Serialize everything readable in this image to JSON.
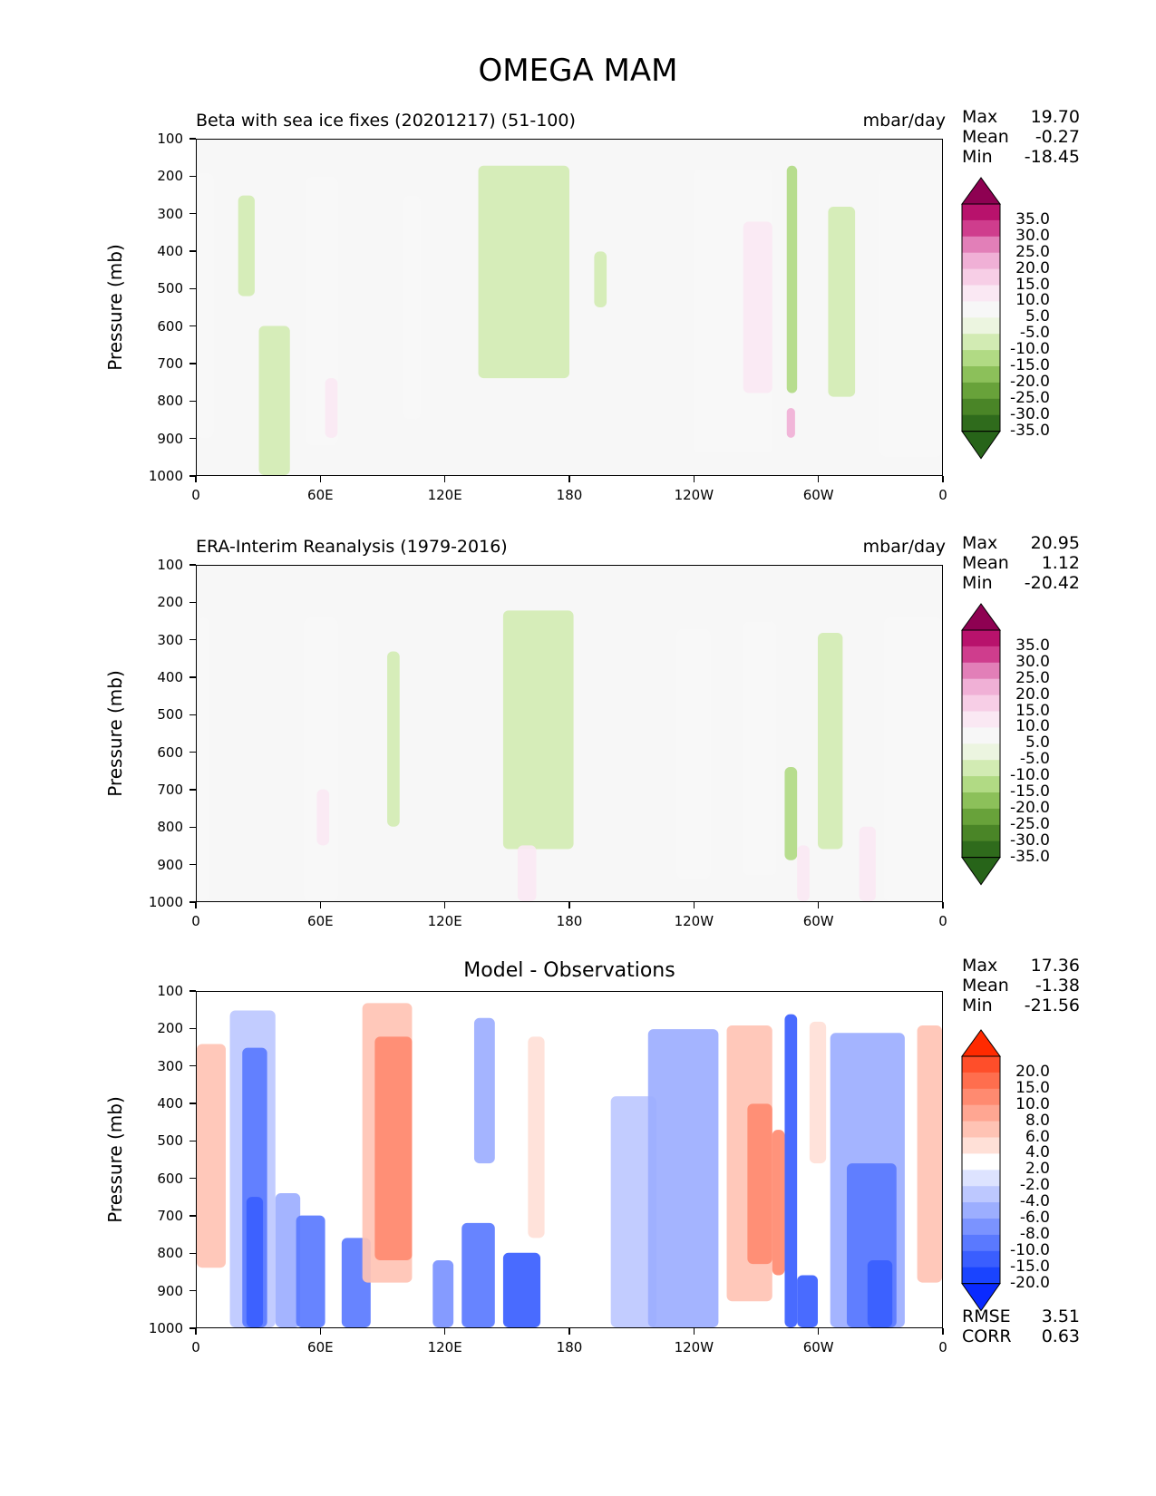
{
  "figure_title": "OMEGA MAM",
  "ylabel": "Pressure (mb)",
  "yticks": [
    "100",
    "200",
    "300",
    "400",
    "500",
    "600",
    "700",
    "800",
    "900",
    "1000"
  ],
  "xticks": [
    "0",
    "60E",
    "120E",
    "180",
    "120W",
    "60W",
    "0"
  ],
  "colors": {
    "background_field": "#f7f7f7",
    "diff_background": "#ffffff"
  },
  "panels": [
    {
      "title_left": "Beta with sea ice fixes (20201217) (51-100)",
      "title_right": "mbar/day",
      "stats": [
        {
          "label": "Max",
          "value": "19.70"
        },
        {
          "label": "Mean",
          "value": "-0.27"
        },
        {
          "label": "Min",
          "value": "-18.45"
        }
      ],
      "colorbar": {
        "labels": [
          "35.0",
          "30.0",
          "25.0",
          "20.0",
          "15.0",
          "10.0",
          "5.0",
          "-5.0",
          "-10.0",
          "-15.0",
          "-20.0",
          "-25.0",
          "-30.0",
          "-35.0"
        ],
        "colors": [
          "#8e0152",
          "#b8126c",
          "#cf3d8d",
          "#e27fb8",
          "#f0b0d6",
          "#f7cee6",
          "#fae8f3",
          "#f7f7f7",
          "#ecf5e0",
          "#d2ebb3",
          "#b1da84",
          "#8cc05a",
          "#68a23a",
          "#4a8527",
          "#2f6b1c",
          "#276419"
        ]
      }
    },
    {
      "title_left": "ERA-Interim Reanalysis (1979-2016)",
      "title_right": "mbar/day",
      "stats": [
        {
          "label": "Max",
          "value": "20.95"
        },
        {
          "label": "Mean",
          "value": "1.12"
        },
        {
          "label": "Min",
          "value": "-20.42"
        }
      ],
      "colorbar": {
        "labels": [
          "35.0",
          "30.0",
          "25.0",
          "20.0",
          "15.0",
          "10.0",
          "5.0",
          "-5.0",
          "-10.0",
          "-15.0",
          "-20.0",
          "-25.0",
          "-30.0",
          "-35.0"
        ],
        "colors": [
          "#8e0152",
          "#b8126c",
          "#cf3d8d",
          "#e27fb8",
          "#f0b0d6",
          "#f7cee6",
          "#fae8f3",
          "#f7f7f7",
          "#ecf5e0",
          "#d2ebb3",
          "#b1da84",
          "#8cc05a",
          "#68a23a",
          "#4a8527",
          "#2f6b1c",
          "#276419"
        ]
      }
    },
    {
      "title_center": "Model - Observations",
      "stats": [
        {
          "label": "Max",
          "value": "17.36"
        },
        {
          "label": "Mean",
          "value": "-1.38"
        },
        {
          "label": "Min",
          "value": "-21.56"
        }
      ],
      "colorbar": {
        "labels": [
          "20.0",
          "15.0",
          "10.0",
          "8.0",
          "6.0",
          "4.0",
          "2.0",
          "-2.0",
          "-4.0",
          "-6.0",
          "-8.0",
          "-10.0",
          "-15.0",
          "-20.0"
        ],
        "colors": [
          "#ff2a00",
          "#ff4e2a",
          "#ff6e4e",
          "#ff8a70",
          "#ffa692",
          "#ffc3b4",
          "#ffe0d7",
          "#ffffff",
          "#dde3ff",
          "#bdc8ff",
          "#9caeff",
          "#7b93ff",
          "#5a79ff",
          "#3a5eff",
          "#1a44ff",
          "#0a2aff"
        ]
      },
      "metrics": [
        {
          "label": "RMSE",
          "value": "3.51"
        },
        {
          "label": "CORR",
          "value": "0.63"
        }
      ]
    }
  ],
  "chart_data": [
    {
      "type": "heatmap",
      "title": "Beta with sea ice fixes (20201217) (51-100)",
      "units": "mbar/day",
      "ylabel": "Pressure (mb)",
      "x_range": [
        0,
        360
      ],
      "y_range": [
        100,
        1000
      ],
      "y_inverted": true,
      "levels": [
        -35,
        -30,
        -25,
        -20,
        -15,
        -10,
        -5,
        5,
        10,
        15,
        20,
        25,
        30,
        35
      ],
      "features": [
        {
          "lon_range": [
            0,
            8
          ],
          "p_range": [
            190,
            900
          ],
          "value": 8
        },
        {
          "lon_range": [
            20,
            28
          ],
          "p_range": [
            250,
            520
          ],
          "value": -6
        },
        {
          "lon_range": [
            30,
            45
          ],
          "p_range": [
            600,
            1000
          ],
          "value": -6
        },
        {
          "lon_range": [
            53,
            68
          ],
          "p_range": [
            200,
            920
          ],
          "value": 7
        },
        {
          "lon_range": [
            62,
            68
          ],
          "p_range": [
            740,
            900
          ],
          "value": 12
        },
        {
          "lon_range": [
            100,
            108
          ],
          "p_range": [
            250,
            850
          ],
          "value": 6
        },
        {
          "lon_range": [
            136,
            180
          ],
          "p_range": [
            170,
            740
          ],
          "value": -6
        },
        {
          "lon_range": [
            192,
            198
          ],
          "p_range": [
            400,
            550
          ],
          "value": -6
        },
        {
          "lon_range": [
            240,
            278
          ],
          "p_range": [
            180,
            940
          ],
          "value": 8
        },
        {
          "lon_range": [
            264,
            278
          ],
          "p_range": [
            320,
            780
          ],
          "value": 12
        },
        {
          "lon_range": [
            285,
            290
          ],
          "p_range": [
            170,
            780
          ],
          "value": -12
        },
        {
          "lon_range": [
            285,
            289
          ],
          "p_range": [
            820,
            900
          ],
          "value": 20
        },
        {
          "lon_range": [
            305,
            318
          ],
          "p_range": [
            280,
            790
          ],
          "value": -6
        },
        {
          "lon_range": [
            330,
            360
          ],
          "p_range": [
            180,
            950
          ],
          "value": 8
        }
      ]
    },
    {
      "type": "heatmap",
      "title": "ERA-Interim Reanalysis (1979-2016)",
      "units": "mbar/day",
      "ylabel": "Pressure (mb)",
      "x_range": [
        0,
        360
      ],
      "y_range": [
        100,
        1000
      ],
      "y_inverted": true,
      "levels": [
        -35,
        -30,
        -25,
        -20,
        -15,
        -10,
        -5,
        5,
        10,
        15,
        20,
        25,
        30,
        35
      ],
      "features": [
        {
          "lon_range": [
            0,
            6
          ],
          "p_range": [
            240,
            1000
          ],
          "value": 6
        },
        {
          "lon_range": [
            52,
            68
          ],
          "p_range": [
            240,
            1000
          ],
          "value": 7
        },
        {
          "lon_range": [
            58,
            64
          ],
          "p_range": [
            700,
            850
          ],
          "value": 12
        },
        {
          "lon_range": [
            92,
            98
          ],
          "p_range": [
            330,
            800
          ],
          "value": -6
        },
        {
          "lon_range": [
            148,
            182
          ],
          "p_range": [
            220,
            860
          ],
          "value": -6
        },
        {
          "lon_range": [
            155,
            164
          ],
          "p_range": [
            850,
            1000
          ],
          "value": 10
        },
        {
          "lon_range": [
            232,
            248
          ],
          "p_range": [
            270,
            940
          ],
          "value": 7
        },
        {
          "lon_range": [
            264,
            280
          ],
          "p_range": [
            250,
            930
          ],
          "value": 7
        },
        {
          "lon_range": [
            284,
            290
          ],
          "p_range": [
            640,
            890
          ],
          "value": -12
        },
        {
          "lon_range": [
            290,
            296
          ],
          "p_range": [
            850,
            1000
          ],
          "value": 14
        },
        {
          "lon_range": [
            300,
            312
          ],
          "p_range": [
            280,
            860
          ],
          "value": -6
        },
        {
          "lon_range": [
            320,
            328
          ],
          "p_range": [
            800,
            1000
          ],
          "value": 12
        },
        {
          "lon_range": [
            332,
            360
          ],
          "p_range": [
            240,
            1000
          ],
          "value": 7
        }
      ]
    },
    {
      "type": "heatmap",
      "title": "Model - Observations",
      "ylabel": "Pressure (mb)",
      "x_range": [
        0,
        360
      ],
      "y_range": [
        100,
        1000
      ],
      "y_inverted": true,
      "levels": [
        -20,
        -15,
        -10,
        -8,
        -6,
        -4,
        -2,
        2,
        4,
        6,
        8,
        10,
        15,
        20
      ],
      "features": [
        {
          "lon_range": [
            0,
            14
          ],
          "p_range": [
            240,
            840
          ],
          "value": 6
        },
        {
          "lon_range": [
            16,
            38
          ],
          "p_range": [
            150,
            1000
          ],
          "value": -4
        },
        {
          "lon_range": [
            22,
            34
          ],
          "p_range": [
            250,
            1000
          ],
          "value": -9
        },
        {
          "lon_range": [
            24,
            32
          ],
          "p_range": [
            650,
            1000
          ],
          "value": -15
        },
        {
          "lon_range": [
            38,
            50
          ],
          "p_range": [
            640,
            1000
          ],
          "value": -6
        },
        {
          "lon_range": [
            48,
            62
          ],
          "p_range": [
            700,
            1000
          ],
          "value": -10
        },
        {
          "lon_range": [
            70,
            84
          ],
          "p_range": [
            760,
            1000
          ],
          "value": -10
        },
        {
          "lon_range": [
            80,
            104
          ],
          "p_range": [
            130,
            880
          ],
          "value": 6
        },
        {
          "lon_range": [
            86,
            104
          ],
          "p_range": [
            220,
            820
          ],
          "value": 12
        },
        {
          "lon_range": [
            114,
            124
          ],
          "p_range": [
            820,
            1000
          ],
          "value": -8
        },
        {
          "lon_range": [
            128,
            144
          ],
          "p_range": [
            720,
            1000
          ],
          "value": -10
        },
        {
          "lon_range": [
            134,
            144
          ],
          "p_range": [
            170,
            560
          ],
          "value": -5
        },
        {
          "lon_range": [
            148,
            166
          ],
          "p_range": [
            800,
            1000
          ],
          "value": -15
        },
        {
          "lon_range": [
            160,
            168
          ],
          "p_range": [
            220,
            760
          ],
          "value": 4
        },
        {
          "lon_range": [
            200,
            222
          ],
          "p_range": [
            380,
            1000
          ],
          "value": -4
        },
        {
          "lon_range": [
            218,
            252
          ],
          "p_range": [
            200,
            1000
          ],
          "value": -5
        },
        {
          "lon_range": [
            256,
            278
          ],
          "p_range": [
            190,
            930
          ],
          "value": 6
        },
        {
          "lon_range": [
            266,
            278
          ],
          "p_range": [
            400,
            830
          ],
          "value": 10
        },
        {
          "lon_range": [
            278,
            284
          ],
          "p_range": [
            470,
            860
          ],
          "value": 12
        },
        {
          "lon_range": [
            284,
            290
          ],
          "p_range": [
            160,
            1000
          ],
          "value": -12
        },
        {
          "lon_range": [
            290,
            300
          ],
          "p_range": [
            860,
            1000
          ],
          "value": -15
        },
        {
          "lon_range": [
            296,
            304
          ],
          "p_range": [
            180,
            560
          ],
          "value": 4
        },
        {
          "lon_range": [
            306,
            342
          ],
          "p_range": [
            210,
            1000
          ],
          "value": -5
        },
        {
          "lon_range": [
            314,
            338
          ],
          "p_range": [
            560,
            1000
          ],
          "value": -10
        },
        {
          "lon_range": [
            324,
            336
          ],
          "p_range": [
            820,
            1000
          ],
          "value": -15
        },
        {
          "lon_range": [
            348,
            360
          ],
          "p_range": [
            190,
            880
          ],
          "value": 6
        }
      ]
    }
  ]
}
